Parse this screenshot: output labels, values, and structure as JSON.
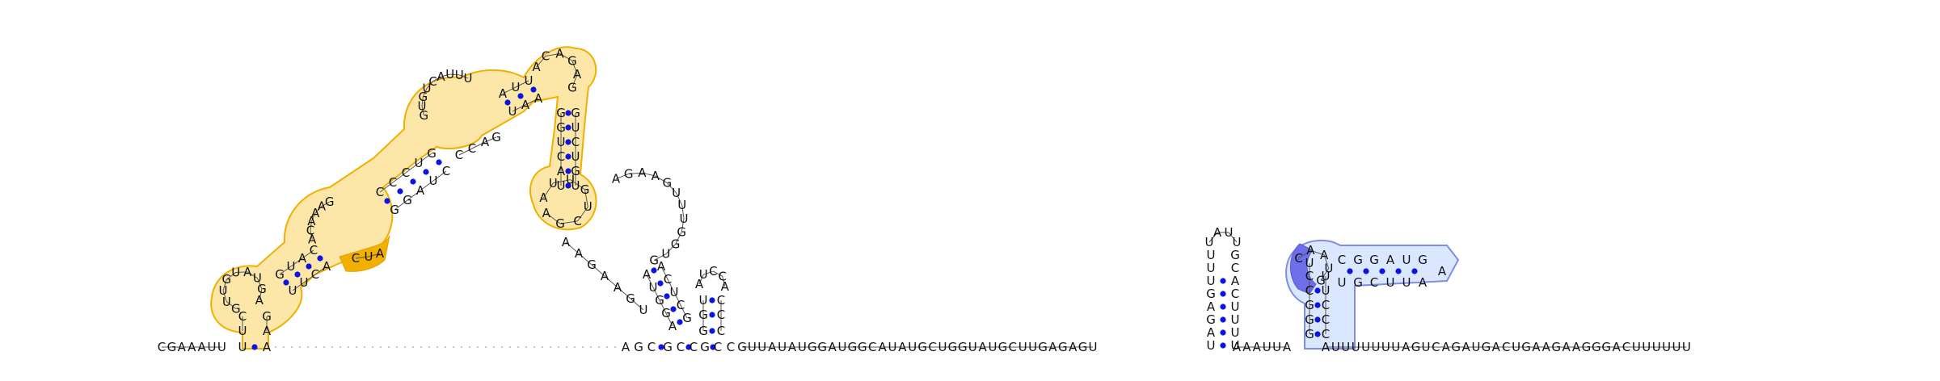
{
  "diagram": {
    "type": "rna-secondary-structure",
    "colors": {
      "base_pair": "#0a14e6",
      "text": "#111111",
      "highlight_orange_fill": "#fde7a8",
      "highlight_orange_stroke": "#f0b000",
      "highlight_blue_fill": "#dbe7ff",
      "highlight_blue_stroke": "#7e8ee6",
      "highlight_blue_strong": "#6c6fe8"
    },
    "backbone_prefix": "CGAAAUU",
    "backbone_suffix": "AUUUUUUUAGUCAGAUGACUGAAGAAGGGACUUUUUU",
    "middle_linker": "GUUAUAUGGAUGGCAUAUGCUGGUAUGCUUGAGAGU",
    "helix_a": {
      "strand_5": "UUUGAGAU",
      "strand_3": "GCACUUUU"
    }
  }
}
